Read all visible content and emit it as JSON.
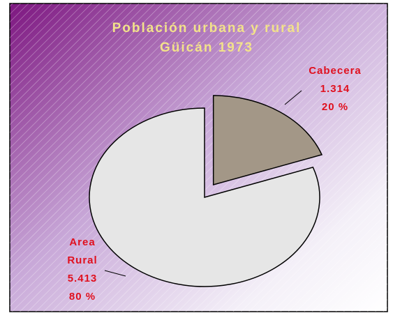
{
  "chart_data": {
    "type": "pie",
    "title": [
      "Población urbana y rural",
      "Güicán 1973"
    ],
    "categories": [
      "Cabecera",
      "Area Rural"
    ],
    "values": [
      1314,
      5413
    ],
    "value_labels": [
      "1.314",
      "5.413"
    ],
    "percent_labels": [
      "20 %",
      "80 %"
    ],
    "colors": [
      "#a39787",
      "#e6e6e6"
    ]
  }
}
